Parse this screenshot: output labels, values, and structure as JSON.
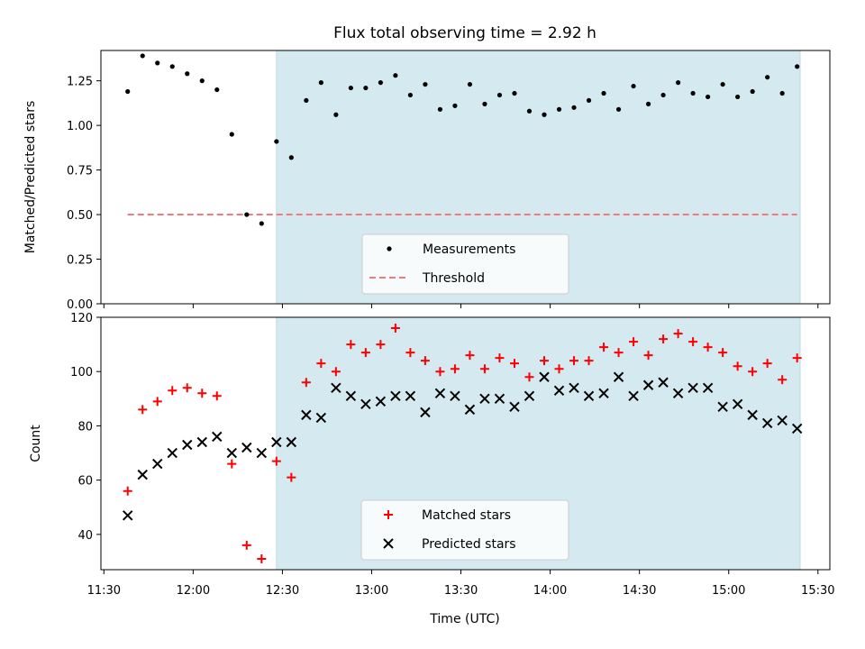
{
  "chart_data": {
    "type": "scatter",
    "title": "Flux total observing time = 2.92 h",
    "xlabel": "Time (UTC)",
    "x_tick_labels": [
      "11:30",
      "12:00",
      "12:30",
      "13:00",
      "13:30",
      "14:00",
      "14:30",
      "15:00",
      "15:30"
    ],
    "x_ticks": [
      "11:30",
      "12:00",
      "12:30",
      "13:00",
      "13:30",
      "14:00",
      "14:30",
      "15:00",
      "15:30"
    ],
    "xlim": [
      "11:29",
      "15:34"
    ],
    "shaded_span": {
      "start": "12:28",
      "end": "15:24",
      "color": "#d4eaf0"
    },
    "times": [
      "11:38",
      "11:43",
      "11:48",
      "11:53",
      "11:58",
      "12:03",
      "12:08",
      "12:13",
      "12:18",
      "12:23",
      "12:28",
      "12:33",
      "12:38",
      "12:43",
      "12:48",
      "12:53",
      "12:58",
      "13:03",
      "13:08",
      "13:13",
      "13:18",
      "13:23",
      "13:28",
      "13:33",
      "13:38",
      "13:43",
      "13:48",
      "13:53",
      "13:58",
      "14:03",
      "14:08",
      "14:13",
      "14:18",
      "14:23",
      "14:28",
      "14:33",
      "14:38",
      "14:43",
      "14:48",
      "14:53",
      "14:58",
      "15:03",
      "15:08",
      "15:13",
      "15:18",
      "15:23"
    ],
    "panels": [
      {
        "ylabel": "Matched/Predicted stars",
        "ylim": [
          0,
          1.42
        ],
        "y_ticks": [
          0,
          0.25,
          0.5,
          0.75,
          1.0,
          1.25
        ],
        "y_tick_labels": [
          "0.00",
          "0.25",
          "0.50",
          "0.75",
          "1.00",
          "1.25"
        ],
        "legend_position": "lower-center",
        "series": [
          {
            "name": "Measurements",
            "marker": "dot",
            "color": "#000000",
            "values": [
              1.19,
              1.39,
              1.35,
              1.33,
              1.29,
              1.25,
              1.2,
              0.95,
              0.5,
              0.45,
              0.91,
              0.82,
              1.14,
              1.24,
              1.06,
              1.21,
              1.21,
              1.24,
              1.28,
              1.17,
              1.23,
              1.09,
              1.11,
              1.23,
              1.12,
              1.17,
              1.18,
              1.08,
              1.06,
              1.09,
              1.1,
              1.14,
              1.18,
              1.09,
              1.22,
              1.12,
              1.17,
              1.24,
              1.18,
              1.16,
              1.23,
              1.16,
              1.19,
              1.27,
              1.18,
              1.33
            ]
          }
        ],
        "threshold": {
          "name": "Threshold",
          "value": 0.5,
          "color": "#f47a7a",
          "style": "dashed",
          "start": "11:38",
          "end": "15:23"
        }
      },
      {
        "ylabel": "Count",
        "ylim": [
          27,
          120
        ],
        "y_ticks": [
          40,
          60,
          80,
          100,
          120
        ],
        "y_tick_labels": [
          "40",
          "60",
          "80",
          "100",
          "120"
        ],
        "legend_position": "lower-center",
        "series": [
          {
            "name": "Matched stars",
            "marker": "plus",
            "color": "#ff0000",
            "values": [
              56,
              86,
              89,
              93,
              94,
              92,
              91,
              66,
              36,
              31,
              67,
              61,
              96,
              103,
              100,
              110,
              107,
              110,
              116,
              107,
              104,
              100,
              101,
              106,
              101,
              105,
              103,
              98,
              104,
              101,
              104,
              104,
              109,
              107,
              111,
              106,
              112,
              114,
              111,
              109,
              107,
              102,
              100,
              103,
              97,
              105
            ]
          },
          {
            "name": "Predicted stars",
            "marker": "x",
            "color": "#000000",
            "values": [
              47,
              62,
              66,
              70,
              73,
              74,
              76,
              70,
              72,
              70,
              74,
              74,
              84,
              83,
              94,
              91,
              88,
              89,
              91,
              91,
              85,
              92,
              91,
              86,
              90,
              90,
              87,
              91,
              98,
              93,
              94,
              91,
              92,
              98,
              91,
              95,
              96,
              92,
              94,
              94,
              87,
              88,
              84,
              81,
              82,
              79
            ]
          }
        ]
      }
    ]
  }
}
